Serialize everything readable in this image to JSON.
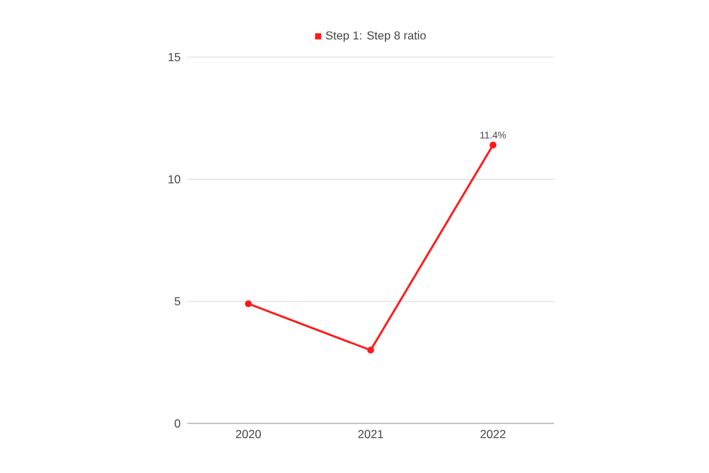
{
  "chart_data": {
    "type": "line",
    "categories": [
      "2020",
      "2021",
      "2022"
    ],
    "series": [
      {
        "name": "Step 1: Step 8 ratio",
        "color": "#ff1a1a",
        "values": [
          4.9,
          3.0,
          11.4
        ],
        "value_labels": [
          null,
          null,
          "11.4%"
        ]
      }
    ],
    "ylim": [
      0,
      15
    ],
    "yticks": [
      0,
      5,
      10,
      15
    ],
    "grid": "y",
    "legend": "top",
    "marker": "circle",
    "line_style": "solid"
  }
}
